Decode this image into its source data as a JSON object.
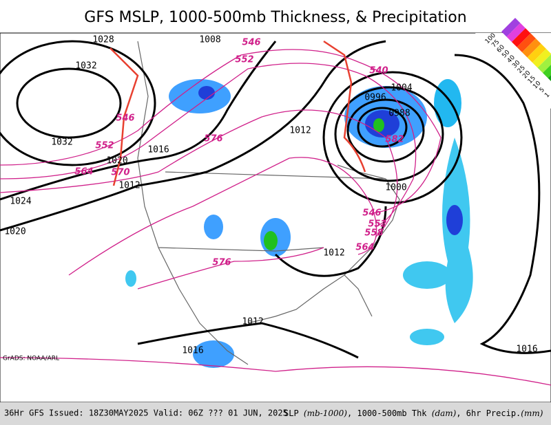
{
  "title": "GFS MSLP, 1000-500mb Thickness, & Precipitation",
  "credit": "GrADS: NOAA/ARL",
  "footer": {
    "run": "36Hr GFS Issued: 18Z30MAY2025 Valid: 06Z ??? 01 JUN, 2025",
    "fields": [
      "SLP ",
      "(mb-1000)",
      ", 1000-500mb Thk ",
      "(dam)",
      ", 6hr Precip.",
      "(mm)"
    ]
  },
  "legend_labels": [
    "100",
    "75",
    "60",
    "50",
    "40",
    "30",
    "25",
    "20",
    "15",
    "10",
    "5",
    "1"
  ],
  "isobar_labels": [
    "1028",
    "1008",
    "1032",
    "1032",
    "1016",
    "1020",
    "1012",
    "1024",
    "1020",
    "1012",
    "1004",
    "0996",
    "0988",
    "1000",
    "1012",
    "1012",
    "1016",
    "1016"
  ],
  "thickness_labels": [
    "546",
    "552",
    "540",
    "546",
    "552",
    "564",
    "570",
    "576",
    "576",
    "546",
    "552",
    "558",
    "564",
    "582"
  ]
}
